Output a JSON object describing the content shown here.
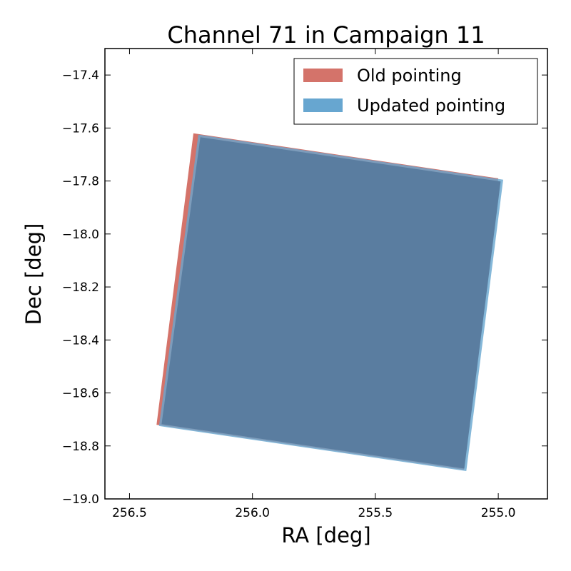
{
  "chart_data": {
    "type": "area",
    "title": "Channel 71 in Campaign 11",
    "xlabel": "RA [deg]",
    "ylabel": "Dec [deg]",
    "xlim": [
      256.6,
      254.8
    ],
    "ylim": [
      -19.0,
      -17.3
    ],
    "x_inverted": true,
    "xticks": [
      256.5,
      256.0,
      255.5,
      255.0
    ],
    "xtick_labels": [
      "256.5",
      "256.0",
      "255.5",
      "255.0"
    ],
    "yticks": [
      -17.4,
      -17.6,
      -17.8,
      -18.0,
      -18.2,
      -18.4,
      -18.6,
      -18.8,
      -19.0
    ],
    "ytick_labels": [
      "−17.4",
      "−17.6",
      "−17.8",
      "−18.0",
      "−18.2",
      "−18.4",
      "−18.6",
      "−18.8",
      "−19.0"
    ],
    "grid": false,
    "legend_position": "top-right",
    "series": [
      {
        "name": "Old pointing",
        "color": "#d4736a",
        "points": [
          [
            256.24,
            -17.62
          ],
          [
            255.0,
            -17.79
          ],
          [
            255.14,
            -18.89
          ],
          [
            256.39,
            -18.72
          ]
        ]
      },
      {
        "name": "Updated pointing",
        "color": "#67a6d0",
        "points": [
          [
            256.22,
            -17.625
          ],
          [
            254.98,
            -17.795
          ],
          [
            255.13,
            -18.895
          ],
          [
            256.38,
            -18.725
          ]
        ]
      }
    ],
    "overlap_color": "#5a7da0"
  }
}
